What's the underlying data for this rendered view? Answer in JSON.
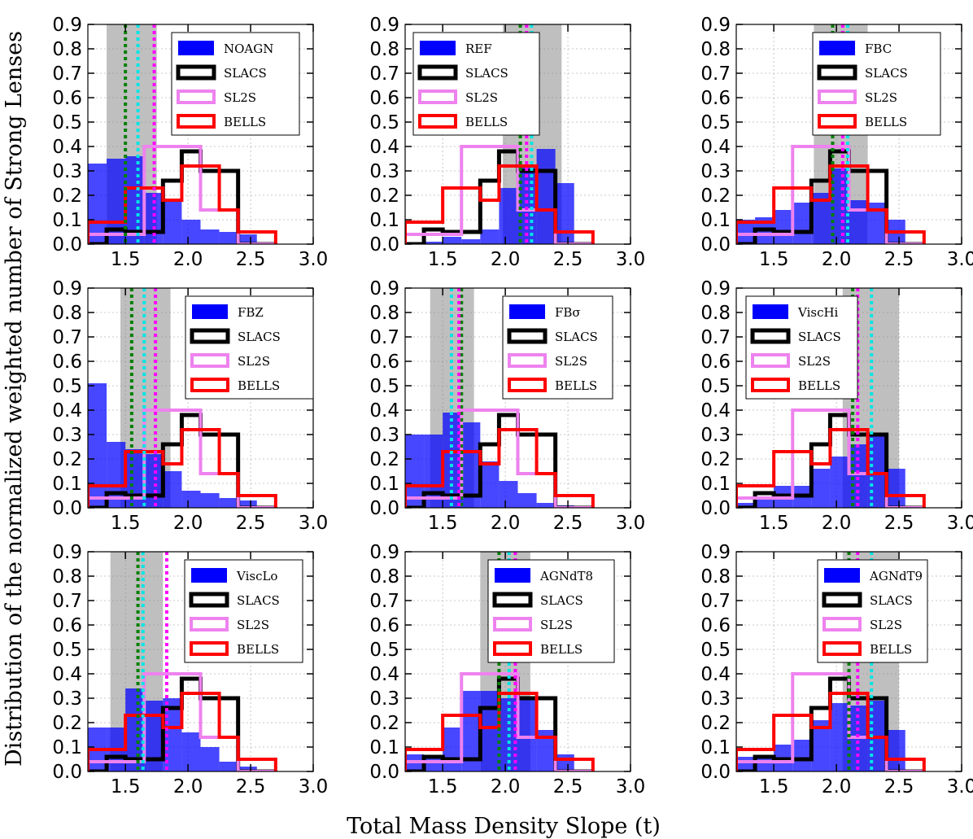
{
  "figure": {
    "xlabel": "Total Mass Density Slope (t)",
    "ylabel": "Distribution of the normalized weighted number of Strong Lenses"
  },
  "chart_data": {
    "type": "bar",
    "layout": "3x3 grid of histogram panels",
    "xlim": [
      1.2,
      3.0
    ],
    "ylim": [
      0,
      0.9
    ],
    "xticks": [
      "1.5",
      "2.0",
      "2.5",
      "3.0"
    ],
    "yticks": [
      "0.0",
      "0.1",
      "0.2",
      "0.3",
      "0.4",
      "0.5",
      "0.6",
      "0.7",
      "0.8",
      "0.9"
    ],
    "bin_edges": [
      1.2,
      1.35,
      1.5,
      1.65,
      1.8,
      1.95,
      2.1,
      2.25,
      2.4,
      2.55,
      2.7
    ],
    "grid": true,
    "legend_placement": "top-right",
    "colors": {
      "simulation": "#0000ff",
      "SLACS": "#000000",
      "SL2S": "#ee82ee",
      "BELLS": "#ff0000",
      "sim_mean_line": "#008000",
      "obs_mean_line_1": "#00e5e5",
      "obs_mean_line_2": "#ff00ff",
      "scatter_band": "#808080"
    },
    "observed": [
      {
        "name": "SLACS",
        "values": [
          0.0,
          0.06,
          0.05,
          0.05,
          0.26,
          0.38,
          0.3,
          0.3,
          0.0,
          0.0
        ]
      },
      {
        "name": "SL2S",
        "values": [
          0.04,
          0.04,
          0.04,
          0.4,
          0.4,
          0.4,
          0.14,
          0.14,
          0.0,
          0.0
        ]
      },
      {
        "name": "BELLS",
        "values": [
          0.09,
          0.09,
          0.23,
          0.23,
          0.18,
          0.32,
          0.32,
          0.14,
          0.05,
          0.05
        ]
      }
    ],
    "panels": [
      {
        "name": "NOAGN",
        "values": [
          0.33,
          0.35,
          0.36,
          0.21,
          0.18,
          0.1,
          0.06,
          0.05,
          0.04,
          0.0
        ],
        "band": [
          1.35,
          1.75
        ],
        "green": 1.5,
        "cyan": 1.6,
        "magenta": 1.73
      },
      {
        "name": "REF",
        "values": [
          0.0,
          0.01,
          0.03,
          0.02,
          0.06,
          0.23,
          0.32,
          0.39,
          0.25,
          0.0
        ],
        "band": [
          1.98,
          2.45
        ],
        "green": 2.12,
        "cyan": 2.21,
        "magenta": 2.17
      },
      {
        "name": "FBC",
        "values": [
          0.1,
          0.11,
          0.14,
          0.17,
          0.21,
          0.31,
          0.18,
          0.17,
          0.1,
          0.0
        ],
        "band": [
          1.82,
          2.25
        ],
        "green": 1.97,
        "cyan": 2.09,
        "magenta": 2.05
      },
      {
        "name": "FBZ",
        "values": [
          0.51,
          0.27,
          0.24,
          0.22,
          0.15,
          0.07,
          0.06,
          0.04,
          0.03,
          0.0
        ],
        "band": [
          1.46,
          1.86
        ],
        "green": 1.55,
        "cyan": 1.65,
        "magenta": 1.74
      },
      {
        "name": "FBσ",
        "values": [
          0.3,
          0.3,
          0.39,
          0.35,
          0.19,
          0.11,
          0.06,
          0.02,
          0.01,
          0.0
        ],
        "band": [
          1.4,
          1.75
        ],
        "green": 1.65,
        "cyan": 1.57,
        "magenta": 1.63
      },
      {
        "name": "ViscHi",
        "values": [
          0.02,
          0.04,
          0.09,
          0.09,
          0.16,
          0.21,
          0.26,
          0.3,
          0.16,
          0.0
        ],
        "band": [
          2.05,
          2.5
        ],
        "green": 2.13,
        "cyan": 2.28,
        "magenta": 2.17
      },
      {
        "name": "ViscLo",
        "values": [
          0.18,
          0.18,
          0.34,
          0.29,
          0.3,
          0.16,
          0.1,
          0.04,
          0.02,
          0.0
        ],
        "band": [
          1.38,
          1.8
        ],
        "green": 1.6,
        "cyan": 1.64,
        "magenta": 1.83
      },
      {
        "name": "AGNdT8",
        "values": [
          0.07,
          0.06,
          0.18,
          0.33,
          0.33,
          0.3,
          0.3,
          0.17,
          0.07,
          0.0
        ],
        "band": [
          1.8,
          2.2
        ],
        "green": 1.95,
        "cyan": 2.03,
        "magenta": 2.08
      },
      {
        "name": "AGNdT9",
        "values": [
          0.06,
          0.06,
          0.11,
          0.13,
          0.21,
          0.28,
          0.27,
          0.29,
          0.17,
          0.0
        ],
        "band": [
          2.05,
          2.5
        ],
        "green": 2.1,
        "cyan": 2.28,
        "magenta": 2.17
      }
    ]
  }
}
